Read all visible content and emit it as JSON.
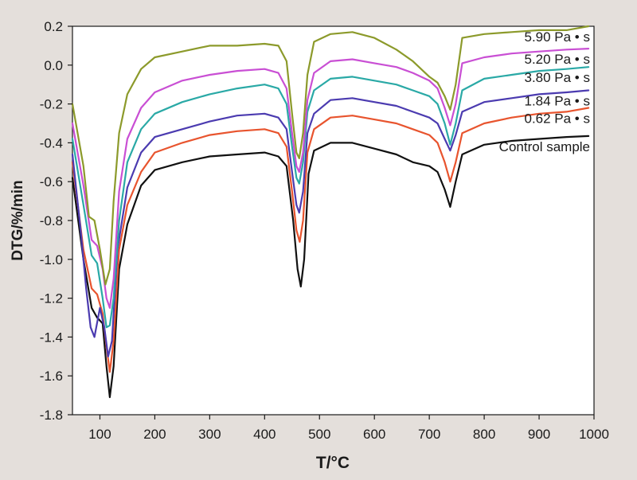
{
  "chart_data": {
    "type": "line",
    "title": "",
    "xlabel": "T/°C",
    "ylabel": "DTG/%/min",
    "xlim": [
      50,
      1000
    ],
    "ylim": [
      -1.8,
      0.2
    ],
    "xticks": [
      100,
      200,
      300,
      400,
      500,
      600,
      700,
      800,
      900,
      1000
    ],
    "yticks": [
      -1.8,
      -1.6,
      -1.4,
      -1.2,
      -1.0,
      -0.8,
      -0.6,
      -0.4,
      -0.2,
      0.0,
      0.2
    ],
    "ytick_labels": [
      "-1.8",
      "-1.6",
      "-1.4",
      "-1.2",
      "-1.0",
      "-0.8",
      "-0.6",
      "-0.4",
      "-0.2",
      "0.0",
      "0.2"
    ],
    "grid": false,
    "legend": "inline labels at right end of each curve",
    "series": [
      {
        "name": "Control sample",
        "color": "#111111",
        "points": [
          [
            50,
            -0.58
          ],
          [
            70,
            -1.0
          ],
          [
            85,
            -1.25
          ],
          [
            95,
            -1.3
          ],
          [
            105,
            -1.33
          ],
          [
            112,
            -1.55
          ],
          [
            118,
            -1.71
          ],
          [
            125,
            -1.55
          ],
          [
            135,
            -1.05
          ],
          [
            150,
            -0.82
          ],
          [
            175,
            -0.62
          ],
          [
            200,
            -0.54
          ],
          [
            250,
            -0.5
          ],
          [
            300,
            -0.47
          ],
          [
            350,
            -0.46
          ],
          [
            400,
            -0.45
          ],
          [
            425,
            -0.47
          ],
          [
            440,
            -0.52
          ],
          [
            452,
            -0.8
          ],
          [
            460,
            -1.05
          ],
          [
            466,
            -1.14
          ],
          [
            472,
            -1.0
          ],
          [
            480,
            -0.56
          ],
          [
            490,
            -0.44
          ],
          [
            520,
            -0.4
          ],
          [
            560,
            -0.4
          ],
          [
            600,
            -0.43
          ],
          [
            640,
            -0.46
          ],
          [
            670,
            -0.5
          ],
          [
            700,
            -0.52
          ],
          [
            715,
            -0.55
          ],
          [
            728,
            -0.64
          ],
          [
            738,
            -0.73
          ],
          [
            748,
            -0.6
          ],
          [
            760,
            -0.46
          ],
          [
            800,
            -0.41
          ],
          [
            850,
            -0.39
          ],
          [
            900,
            -0.38
          ],
          [
            950,
            -0.37
          ],
          [
            990,
            -0.365
          ]
        ]
      },
      {
        "name": "0.62 Pa • s",
        "color": "#e8542e",
        "points": [
          [
            50,
            -0.5
          ],
          [
            70,
            -0.95
          ],
          [
            85,
            -1.15
          ],
          [
            95,
            -1.18
          ],
          [
            105,
            -1.28
          ],
          [
            112,
            -1.45
          ],
          [
            118,
            -1.58
          ],
          [
            125,
            -1.42
          ],
          [
            135,
            -0.95
          ],
          [
            150,
            -0.72
          ],
          [
            175,
            -0.55
          ],
          [
            200,
            -0.45
          ],
          [
            250,
            -0.4
          ],
          [
            300,
            -0.36
          ],
          [
            350,
            -0.34
          ],
          [
            400,
            -0.33
          ],
          [
            425,
            -0.35
          ],
          [
            440,
            -0.42
          ],
          [
            450,
            -0.65
          ],
          [
            458,
            -0.85
          ],
          [
            464,
            -0.91
          ],
          [
            470,
            -0.8
          ],
          [
            478,
            -0.45
          ],
          [
            490,
            -0.33
          ],
          [
            520,
            -0.27
          ],
          [
            560,
            -0.26
          ],
          [
            600,
            -0.28
          ],
          [
            640,
            -0.3
          ],
          [
            670,
            -0.33
          ],
          [
            700,
            -0.36
          ],
          [
            715,
            -0.4
          ],
          [
            728,
            -0.5
          ],
          [
            738,
            -0.6
          ],
          [
            748,
            -0.5
          ],
          [
            760,
            -0.35
          ],
          [
            800,
            -0.3
          ],
          [
            850,
            -0.27
          ],
          [
            900,
            -0.25
          ],
          [
            950,
            -0.24
          ],
          [
            990,
            -0.22
          ]
        ]
      },
      {
        "name": "1.84 Pa • s",
        "color": "#4b3bb0",
        "points": [
          [
            50,
            -0.46
          ],
          [
            65,
            -0.85
          ],
          [
            75,
            -1.15
          ],
          [
            83,
            -1.35
          ],
          [
            90,
            -1.4
          ],
          [
            100,
            -1.25
          ],
          [
            108,
            -1.35
          ],
          [
            115,
            -1.5
          ],
          [
            122,
            -1.42
          ],
          [
            132,
            -0.95
          ],
          [
            150,
            -0.63
          ],
          [
            175,
            -0.45
          ],
          [
            200,
            -0.37
          ],
          [
            250,
            -0.33
          ],
          [
            300,
            -0.29
          ],
          [
            350,
            -0.26
          ],
          [
            400,
            -0.25
          ],
          [
            425,
            -0.27
          ],
          [
            440,
            -0.33
          ],
          [
            450,
            -0.55
          ],
          [
            458,
            -0.72
          ],
          [
            463,
            -0.76
          ],
          [
            470,
            -0.65
          ],
          [
            478,
            -0.35
          ],
          [
            490,
            -0.25
          ],
          [
            520,
            -0.18
          ],
          [
            560,
            -0.17
          ],
          [
            600,
            -0.19
          ],
          [
            640,
            -0.21
          ],
          [
            670,
            -0.24
          ],
          [
            700,
            -0.27
          ],
          [
            715,
            -0.3
          ],
          [
            728,
            -0.38
          ],
          [
            738,
            -0.44
          ],
          [
            748,
            -0.36
          ],
          [
            760,
            -0.24
          ],
          [
            800,
            -0.19
          ],
          [
            850,
            -0.17
          ],
          [
            900,
            -0.15
          ],
          [
            950,
            -0.14
          ],
          [
            990,
            -0.13
          ]
        ]
      },
      {
        "name": "3.80 Pa • s",
        "color": "#2aa9a6",
        "points": [
          [
            50,
            -0.38
          ],
          [
            70,
            -0.72
          ],
          [
            85,
            -0.98
          ],
          [
            95,
            -1.02
          ],
          [
            105,
            -1.2
          ],
          [
            112,
            -1.35
          ],
          [
            118,
            -1.34
          ],
          [
            125,
            -1.2
          ],
          [
            135,
            -0.8
          ],
          [
            150,
            -0.5
          ],
          [
            175,
            -0.33
          ],
          [
            200,
            -0.25
          ],
          [
            250,
            -0.19
          ],
          [
            300,
            -0.15
          ],
          [
            350,
            -0.12
          ],
          [
            400,
            -0.1
          ],
          [
            425,
            -0.12
          ],
          [
            440,
            -0.2
          ],
          [
            450,
            -0.42
          ],
          [
            458,
            -0.58
          ],
          [
            463,
            -0.61
          ],
          [
            470,
            -0.5
          ],
          [
            478,
            -0.24
          ],
          [
            490,
            -0.13
          ],
          [
            520,
            -0.07
          ],
          [
            560,
            -0.06
          ],
          [
            600,
            -0.08
          ],
          [
            640,
            -0.1
          ],
          [
            670,
            -0.13
          ],
          [
            700,
            -0.16
          ],
          [
            715,
            -0.2
          ],
          [
            728,
            -0.3
          ],
          [
            738,
            -0.41
          ],
          [
            748,
            -0.3
          ],
          [
            760,
            -0.13
          ],
          [
            800,
            -0.07
          ],
          [
            850,
            -0.05
          ],
          [
            900,
            -0.03
          ],
          [
            950,
            -0.02
          ],
          [
            990,
            -0.01
          ]
        ]
      },
      {
        "name": "5.20 Pa • s",
        "color": "#c94fd4",
        "points": [
          [
            50,
            -0.3
          ],
          [
            70,
            -0.62
          ],
          [
            85,
            -0.9
          ],
          [
            95,
            -0.93
          ],
          [
            105,
            -1.05
          ],
          [
            112,
            -1.2
          ],
          [
            118,
            -1.25
          ],
          [
            125,
            -1.1
          ],
          [
            135,
            -0.65
          ],
          [
            150,
            -0.38
          ],
          [
            175,
            -0.22
          ],
          [
            200,
            -0.14
          ],
          [
            250,
            -0.08
          ],
          [
            300,
            -0.05
          ],
          [
            350,
            -0.03
          ],
          [
            400,
            -0.02
          ],
          [
            425,
            -0.04
          ],
          [
            440,
            -0.12
          ],
          [
            450,
            -0.35
          ],
          [
            458,
            -0.52
          ],
          [
            463,
            -0.55
          ],
          [
            470,
            -0.45
          ],
          [
            478,
            -0.18
          ],
          [
            490,
            -0.04
          ],
          [
            520,
            0.02
          ],
          [
            560,
            0.03
          ],
          [
            600,
            0.01
          ],
          [
            640,
            -0.01
          ],
          [
            670,
            -0.04
          ],
          [
            700,
            -0.08
          ],
          [
            715,
            -0.12
          ],
          [
            728,
            -0.22
          ],
          [
            738,
            -0.31
          ],
          [
            748,
            -0.2
          ],
          [
            760,
            0.01
          ],
          [
            800,
            0.04
          ],
          [
            850,
            0.06
          ],
          [
            900,
            0.07
          ],
          [
            950,
            0.08
          ],
          [
            990,
            0.085
          ]
        ]
      },
      {
        "name": "5.90 Pa • s",
        "color": "#8c9a2b",
        "points": [
          [
            50,
            -0.2
          ],
          [
            70,
            -0.52
          ],
          [
            80,
            -0.78
          ],
          [
            90,
            -0.8
          ],
          [
            100,
            -0.95
          ],
          [
            110,
            -1.13
          ],
          [
            118,
            -1.05
          ],
          [
            125,
            -0.7
          ],
          [
            135,
            -0.35
          ],
          [
            150,
            -0.15
          ],
          [
            175,
            -0.02
          ],
          [
            200,
            0.04
          ],
          [
            250,
            0.07
          ],
          [
            300,
            0.1
          ],
          [
            350,
            0.1
          ],
          [
            400,
            0.11
          ],
          [
            425,
            0.1
          ],
          [
            440,
            0.02
          ],
          [
            450,
            -0.25
          ],
          [
            458,
            -0.45
          ],
          [
            463,
            -0.48
          ],
          [
            470,
            -0.35
          ],
          [
            478,
            -0.05
          ],
          [
            490,
            0.12
          ],
          [
            520,
            0.16
          ],
          [
            560,
            0.17
          ],
          [
            600,
            0.14
          ],
          [
            640,
            0.08
          ],
          [
            670,
            0.02
          ],
          [
            700,
            -0.06
          ],
          [
            715,
            -0.09
          ],
          [
            728,
            -0.16
          ],
          [
            738,
            -0.23
          ],
          [
            748,
            -0.1
          ],
          [
            760,
            0.14
          ],
          [
            800,
            0.16
          ],
          [
            850,
            0.17
          ],
          [
            900,
            0.18
          ],
          [
            950,
            0.18
          ],
          [
            990,
            0.2
          ]
        ]
      }
    ]
  }
}
